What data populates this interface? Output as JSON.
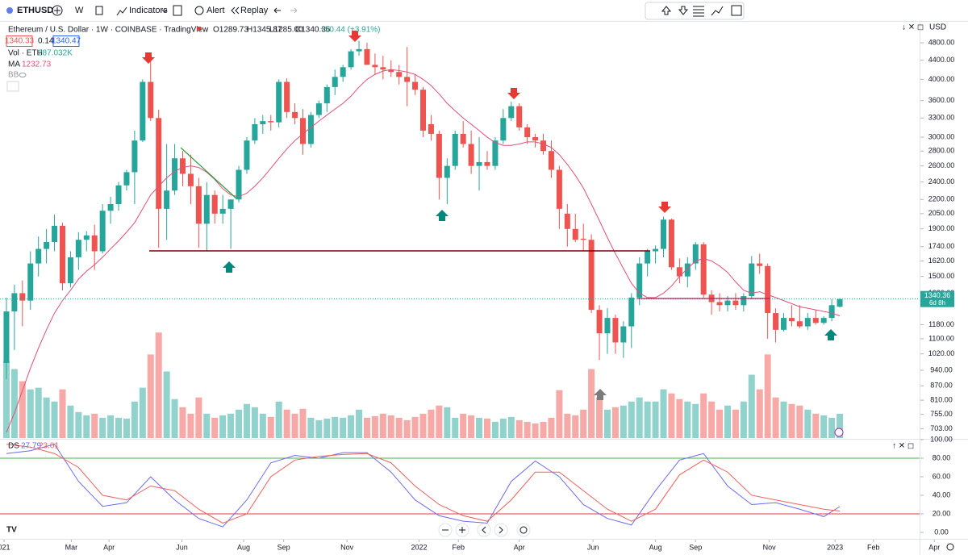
{
  "toolbar": {
    "symbol": "ETHUSD",
    "interval": "W",
    "indicators": "Indicators",
    "alert": "Alert",
    "replay": "Replay"
  },
  "legend": {
    "title": "Ethereum / U.S. Dollar · 1W · COINBASE · TradingView",
    "open": "O1289.73",
    "high": "H1345.87",
    "low": "L1285.00",
    "close": "C1340.36",
    "change": "+50.44 (+3.91%)",
    "bid": "1340.33",
    "spread": "0.14",
    "ask": "1340.47",
    "volume_name": "Vol · ETH",
    "volume_value": "287.032K",
    "ma_name": "MA",
    "ma_value": "1232.73",
    "bb_name": "BB",
    "ds_name": "DS",
    "ds_k": "27.79",
    "ds_d": "23.01"
  },
  "currency": "USD",
  "last_price": "1340.36",
  "countdown": "6d 8h",
  "chart_data": [
    {
      "type": "candlestick",
      "log": true,
      "grid": false,
      "up_color": "#26a69a",
      "down_color": "#ef5350",
      "ma_color": "#e0507a",
      "xlim": [
        -0.8,
        120
      ],
      "xticks": [
        {
          "value": -0.3,
          "label": "021"
        },
        {
          "value": 8.1,
          "label": "Mar"
        },
        {
          "value": 12.8,
          "label": "Apr"
        },
        {
          "value": 21.9,
          "label": "Jun"
        },
        {
          "value": 29.6,
          "label": "Aug"
        },
        {
          "value": 34.6,
          "label": "Sep"
        },
        {
          "value": 42.5,
          "label": "Nov"
        },
        {
          "value": 51.5,
          "label": "2022"
        },
        {
          "value": 56.4,
          "label": "Feb"
        },
        {
          "value": 64,
          "label": "Apr"
        },
        {
          "value": 73.2,
          "label": "Jun"
        },
        {
          "value": 81,
          "label": "Aug"
        },
        {
          "value": 86,
          "label": "Sep"
        },
        {
          "value": 95.2,
          "label": "Nov"
        },
        {
          "value": 103.4,
          "label": "2023"
        },
        {
          "value": 108.2,
          "label": "Feb"
        },
        {
          "value": 115.8,
          "label": "Apr"
        }
      ],
      "ylim": [
        671,
        5057
      ],
      "yticks": [
        {
          "value": 4800,
          "label": "4800.00"
        },
        {
          "value": 4400,
          "label": "4400.00"
        },
        {
          "value": 4000,
          "label": "4000.00"
        },
        {
          "value": 3600,
          "label": "3600.00"
        },
        {
          "value": 3300,
          "label": "3300.00"
        },
        {
          "value": 3000,
          "label": "3000.00"
        },
        {
          "value": 2800,
          "label": "2800.00"
        },
        {
          "value": 2600,
          "label": "2600.00"
        },
        {
          "value": 2400,
          "label": "2400.00"
        },
        {
          "value": 2200,
          "label": "2200.00"
        },
        {
          "value": 2050,
          "label": "2050.00"
        },
        {
          "value": 1900,
          "label": "1900.00"
        },
        {
          "value": 1740,
          "label": "1740.00"
        },
        {
          "value": 1620,
          "label": "1620.00"
        },
        {
          "value": 1500,
          "label": "1500.00"
        },
        {
          "value": 1380,
          "label": "1380.00"
        },
        {
          "value": 1180,
          "label": "1180.00"
        },
        {
          "value": 1100,
          "label": "1100.00"
        },
        {
          "value": 1020,
          "label": "1020.00"
        },
        {
          "value": 940,
          "label": "940.00"
        },
        {
          "value": 870,
          "label": "870.00"
        },
        {
          "value": 810,
          "label": "810.00"
        },
        {
          "value": 755,
          "label": "755.00"
        },
        {
          "value": 703,
          "label": "703.00"
        }
      ],
      "candles": [
        [
          975,
          1350,
          900,
          1260
        ],
        [
          1260,
          1440,
          1040,
          1380
        ],
        [
          1380,
          1470,
          1170,
          1330
        ],
        [
          1330,
          1700,
          1270,
          1600
        ],
        [
          1600,
          1830,
          1500,
          1720
        ],
        [
          1720,
          1900,
          1600,
          1780
        ],
        [
          1780,
          2040,
          1700,
          1930
        ],
        [
          1930,
          1960,
          1400,
          1450
        ],
        [
          1450,
          1700,
          1420,
          1650
        ],
        [
          1650,
          1870,
          1550,
          1800
        ],
        [
          1800,
          1880,
          1700,
          1840
        ],
        [
          1840,
          1940,
          1550,
          1700
        ],
        [
          1700,
          2150,
          1680,
          2080
        ],
        [
          2080,
          2230,
          1950,
          2150
        ],
        [
          2150,
          2400,
          2080,
          2360
        ],
        [
          2360,
          2550,
          2300,
          2520
        ],
        [
          2520,
          3100,
          2150,
          2950
        ],
        [
          2950,
          4000,
          2930,
          3950
        ],
        [
          3950,
          4380,
          3250,
          3300
        ],
        [
          3300,
          3440,
          1730,
          2100
        ],
        [
          2100,
          2900,
          1800,
          2300
        ],
        [
          2300,
          2900,
          2250,
          2700
        ],
        [
          2700,
          2800,
          2350,
          2500
        ],
        [
          2500,
          2750,
          2150,
          2350
        ],
        [
          2350,
          2450,
          1730,
          1950
        ],
        [
          1950,
          2400,
          1700,
          2250
        ],
        [
          2250,
          2300,
          1950,
          2050
        ],
        [
          2050,
          2250,
          1950,
          2100
        ],
        [
          2100,
          2200,
          1720,
          2200
        ],
        [
          2200,
          2600,
          2170,
          2550
        ],
        [
          2550,
          3000,
          2500,
          2950
        ],
        [
          2950,
          3300,
          2900,
          3200
        ],
        [
          3200,
          3350,
          3050,
          3250
        ],
        [
          3250,
          3350,
          3100,
          3230
        ],
        [
          3230,
          4000,
          3150,
          3950
        ],
        [
          3950,
          4020,
          3300,
          3400
        ],
        [
          3400,
          3550,
          3200,
          3300
        ],
        [
          3300,
          3450,
          2750,
          2900
        ],
        [
          2900,
          3400,
          2850,
          3350
        ],
        [
          3350,
          3600,
          3300,
          3550
        ],
        [
          3550,
          3900,
          3400,
          3850
        ],
        [
          3850,
          4200,
          3700,
          4050
        ],
        [
          4050,
          4300,
          3950,
          4250
        ],
        [
          4250,
          4650,
          4200,
          4600
        ],
        [
          4600,
          4850,
          4500,
          4650
        ],
        [
          4650,
          4800,
          4300,
          4300
        ],
        [
          4300,
          4550,
          4100,
          4250
        ],
        [
          4250,
          4500,
          4000,
          4200
        ],
        [
          4200,
          4400,
          4050,
          4150
        ],
        [
          4150,
          4300,
          3900,
          4050
        ],
        [
          4050,
          4700,
          3500,
          3950
        ],
        [
          3950,
          4100,
          3700,
          3800
        ],
        [
          3800,
          3850,
          3000,
          3100
        ],
        [
          3200,
          3350,
          2950,
          3050
        ],
        [
          3050,
          3100,
          2200,
          2450
        ],
        [
          2450,
          2700,
          2150,
          2600
        ],
        [
          2600,
          3100,
          2550,
          3050
        ],
        [
          3050,
          3250,
          2850,
          2900
        ],
        [
          2900,
          3100,
          2500,
          2600
        ],
        [
          2600,
          3000,
          2300,
          2650
        ],
        [
          2650,
          2800,
          2550,
          2600
        ],
        [
          2600,
          3000,
          2550,
          2950
        ],
        [
          2950,
          3450,
          2900,
          3300
        ],
        [
          3300,
          3580,
          3250,
          3500
        ],
        [
          3500,
          3550,
          3100,
          3150
        ],
        [
          3150,
          3200,
          2900,
          3000
        ],
        [
          3000,
          3050,
          2850,
          2950
        ],
        [
          2950,
          3050,
          2750,
          2800
        ],
        [
          2800,
          2950,
          2450,
          2550
        ],
        [
          2550,
          2600,
          1900,
          2100
        ],
        [
          2050,
          2150,
          1740,
          1900
        ],
        [
          1900,
          2050,
          1780,
          1800
        ],
        [
          1810,
          1950,
          1700,
          1800
        ],
        [
          1800,
          1850,
          1250,
          1270
        ],
        [
          1270,
          1300,
          990,
          1130
        ],
        [
          1130,
          1280,
          1020,
          1220
        ],
        [
          1220,
          1240,
          1020,
          1080
        ],
        [
          1080,
          1200,
          1000,
          1170
        ],
        [
          1170,
          1380,
          1050,
          1350
        ],
        [
          1350,
          1650,
          1300,
          1600
        ],
        [
          1600,
          1720,
          1500,
          1700
        ],
        [
          1700,
          1750,
          1600,
          1720
        ],
        [
          1720,
          2020,
          1650,
          1990
        ],
        [
          1990,
          2000,
          1550,
          1570
        ],
        [
          1570,
          1640,
          1450,
          1500
        ],
        [
          1500,
          1650,
          1420,
          1600
        ],
        [
          1600,
          1780,
          1550,
          1760
        ],
        [
          1760,
          1780,
          1350,
          1370
        ],
        [
          1370,
          1400,
          1240,
          1320
        ],
        [
          1320,
          1380,
          1260,
          1300
        ],
        [
          1300,
          1360,
          1260,
          1330
        ],
        [
          1330,
          1380,
          1270,
          1300
        ],
        [
          1300,
          1380,
          1260,
          1360
        ],
        [
          1360,
          1660,
          1340,
          1600
        ],
        [
          1600,
          1680,
          1520,
          1580
        ],
        [
          1580,
          1600,
          1100,
          1250
        ],
        [
          1250,
          1280,
          1080,
          1150
        ],
        [
          1150,
          1250,
          1140,
          1220
        ],
        [
          1220,
          1300,
          1170,
          1200
        ],
        [
          1200,
          1300,
          1160,
          1170
        ],
        [
          1170,
          1250,
          1150,
          1220
        ],
        [
          1220,
          1270,
          1180,
          1190
        ],
        [
          1190,
          1230,
          1180,
          1220
        ],
        [
          1220,
          1340,
          1200,
          1300
        ],
        [
          1289.73,
          1345.87,
          1285,
          1340.36
        ]
      ],
      "volume_ylim": [
        0,
        4800000
      ],
      "volume": [
        912000,
        816000,
        672000,
        576000,
        595200,
        480000,
        432000,
        576000,
        384000,
        307200,
        268800,
        288000,
        240000,
        268800,
        240000,
        230400,
        432000,
        595200,
        988800,
        1248000,
        787200,
        460800,
        364800,
        288000,
        480000,
        288000,
        240000,
        268800,
        288000,
        336000,
        403200,
        364800,
        288000,
        249600,
        432000,
        336000,
        288000,
        345600,
        240000,
        211200,
        230400,
        249600,
        240000,
        268800,
        336000,
        240000,
        259200,
        288000,
        268800,
        240000,
        211200,
        249600,
        288000,
        336000,
        384000,
        364800,
        240000,
        288000,
        268800,
        240000,
        230400,
        192000,
        230400,
        249600,
        211200,
        192000,
        172800,
        192000,
        240000,
        566400,
        288000,
        268800,
        336000,
        816000,
        480000,
        336000,
        364800,
        384000,
        432000,
        480000,
        432000,
        432000,
        576000,
        528000,
        460800,
        432000,
        403200,
        528000,
        432000,
        336000,
        384000,
        336000,
        432000,
        748800,
        576000,
        988800,
        480000,
        432000,
        403200,
        384000,
        336000,
        288000,
        268800,
        240000,
        287032
      ],
      "ma": [
        690,
        760,
        850,
        950,
        1050,
        1150,
        1250,
        1330,
        1400,
        1480,
        1540,
        1590,
        1650,
        1720,
        1790,
        1870,
        1960,
        2100,
        2250,
        2350,
        2450,
        2530,
        2580,
        2600,
        2580,
        2520,
        2430,
        2320,
        2250,
        2230,
        2270,
        2350,
        2450,
        2570,
        2700,
        2830,
        2950,
        3050,
        3150,
        3250,
        3350,
        3450,
        3550,
        3680,
        3850,
        4000,
        4100,
        4170,
        4200,
        4180,
        4150,
        4100,
        4000,
        3880,
        3720,
        3550,
        3420,
        3300,
        3200,
        3100,
        3000,
        2920,
        2880,
        2880,
        2900,
        2930,
        2930,
        2900,
        2850,
        2750,
        2620,
        2480,
        2330,
        2150,
        1980,
        1820,
        1680,
        1560,
        1450,
        1380,
        1350,
        1350,
        1380,
        1430,
        1500,
        1560,
        1620,
        1640,
        1620,
        1580,
        1530,
        1460,
        1400,
        1380,
        1390,
        1370,
        1350,
        1330,
        1310,
        1290,
        1280,
        1270,
        1260,
        1250,
        1232.73
      ]
    },
    {
      "type": "line",
      "grid": false,
      "upper_band": 80,
      "lower_band": 20,
      "band_colors": [
        "#4caf50",
        "#f23645"
      ],
      "ylim": [
        -7,
        100
      ],
      "yticks": [
        {
          "value": 100,
          "label": "100.00"
        },
        {
          "value": 80,
          "label": "80.00"
        },
        {
          "value": 60,
          "label": "60.00"
        },
        {
          "value": 40,
          "label": "40.00"
        },
        {
          "value": 20,
          "label": "20.00"
        },
        {
          "value": 0,
          "label": "0.00"
        }
      ],
      "x": [
        0,
        3,
        6,
        9,
        12,
        15,
        18,
        21,
        24,
        27,
        30,
        33,
        36,
        39,
        42,
        45,
        48,
        51,
        54,
        57,
        60,
        63,
        66,
        69,
        72,
        75,
        78,
        81,
        84,
        87,
        90,
        93,
        96,
        99,
        102,
        104
      ],
      "series": [
        {
          "name": "K",
          "color": "#6b6bf0",
          "values": [
            85,
            88,
            95,
            55,
            28,
            32,
            60,
            35,
            15,
            6,
            35,
            75,
            83,
            80,
            86,
            86,
            65,
            35,
            18,
            12,
            10,
            55,
            77,
            60,
            30,
            15,
            8,
            45,
            78,
            85,
            50,
            30,
            32,
            25,
            17,
            27.79
          ]
        },
        {
          "name": "D",
          "color": "#f0605a",
          "values": [
            95,
            92,
            85,
            70,
            40,
            35,
            50,
            45,
            25,
            10,
            20,
            60,
            78,
            82,
            84,
            85,
            75,
            50,
            30,
            18,
            12,
            35,
            65,
            65,
            45,
            25,
            12,
            25,
            62,
            78,
            65,
            40,
            35,
            30,
            25,
            23.01
          ]
        }
      ]
    }
  ]
}
